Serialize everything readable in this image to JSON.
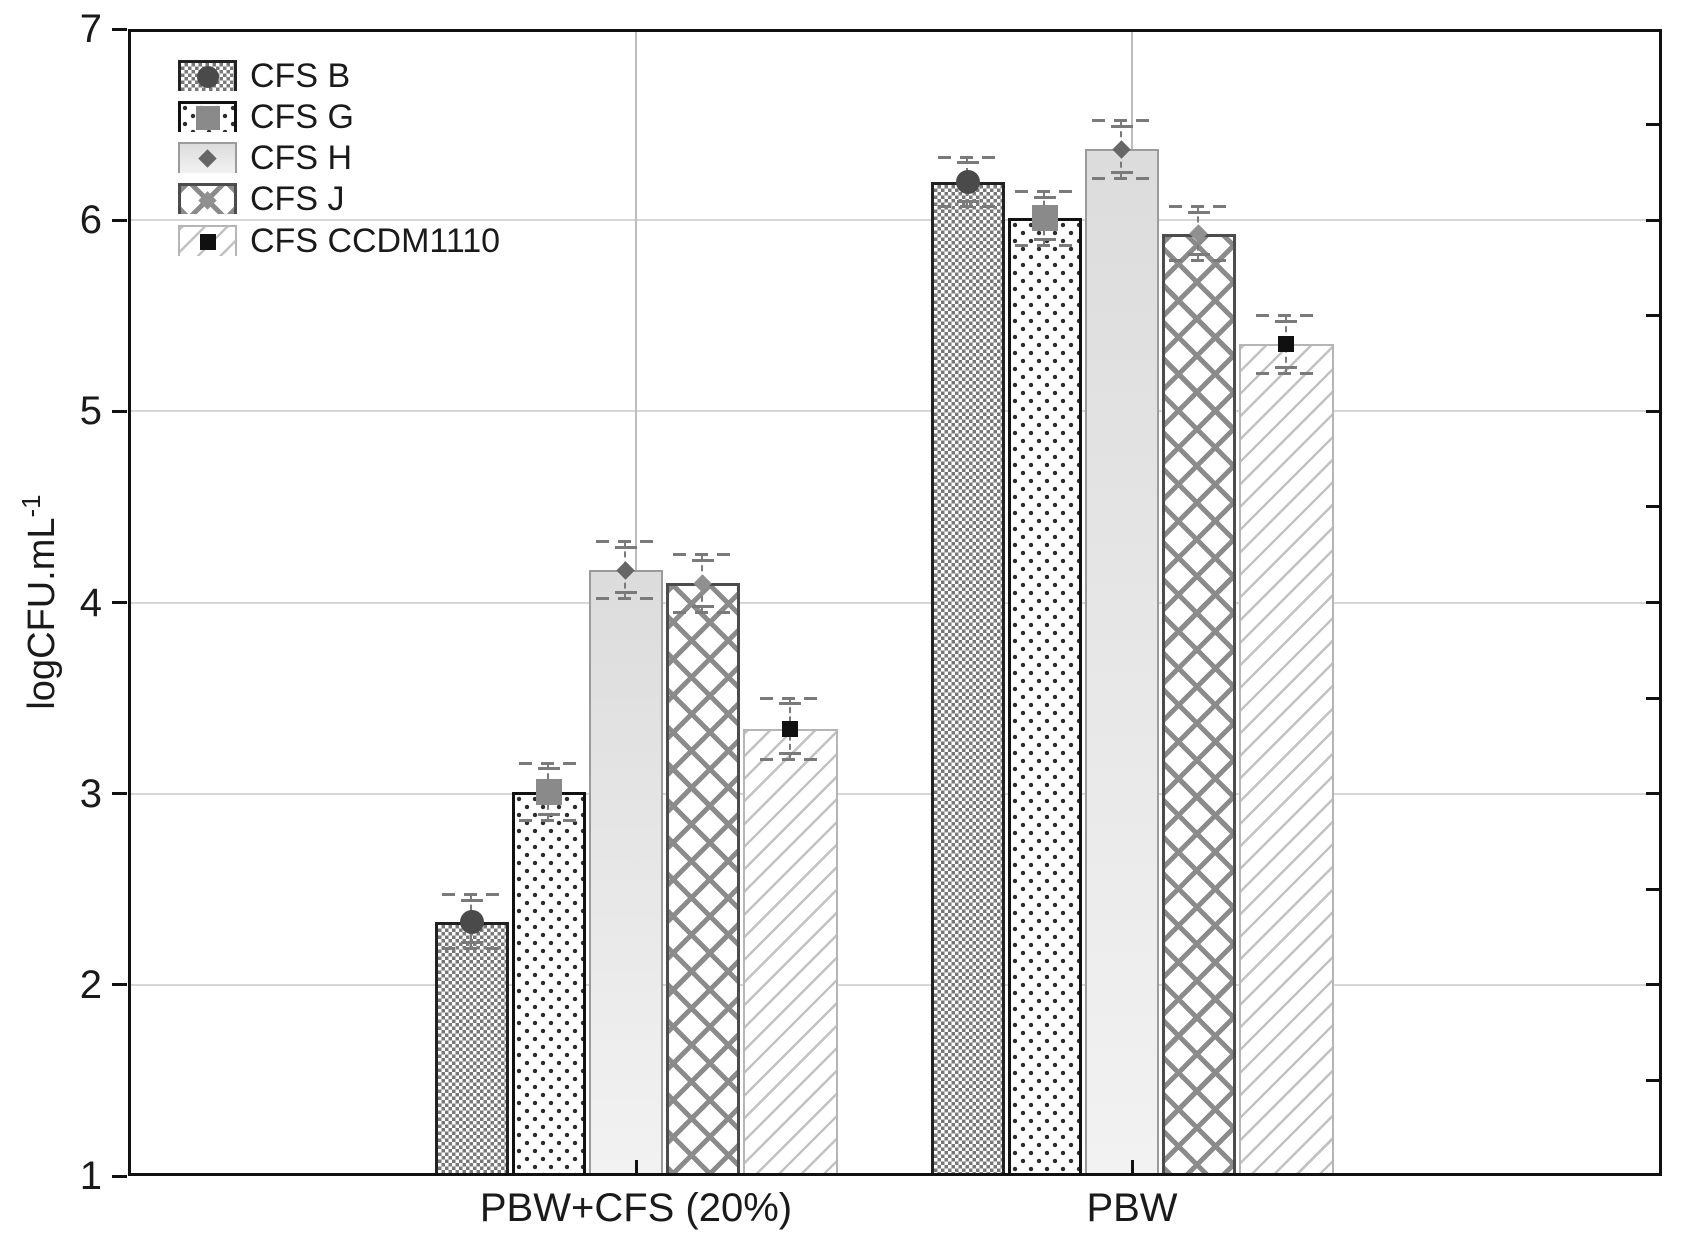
{
  "chart_data": {
    "type": "bar",
    "title": "",
    "ylabel_base": "logCFU.mL",
    "ylabel_exp": "-1",
    "xlabel": "",
    "ylim": [
      1,
      7
    ],
    "yticks": [
      "1",
      "2",
      "3",
      "4",
      "5",
      "6",
      "7"
    ],
    "right_axis_minor_tick_step": 0.5,
    "categories": [
      "PBW+CFS (20%)",
      "PBW"
    ],
    "grid": "horizontal gray lines at integer y values",
    "legend_position": "top-left",
    "series": [
      {
        "name": "CFS B",
        "pattern": "checkerboard",
        "marker": "dark-gray-circle",
        "values": [
          2.33,
          6.2
        ],
        "errors": [
          0.14,
          0.13
        ]
      },
      {
        "name": "CFS G",
        "pattern": "dotted",
        "marker": "gray-square",
        "values": [
          3.01,
          6.01
        ],
        "errors": [
          0.15,
          0.14
        ]
      },
      {
        "name": "CFS H",
        "pattern": "solid-light-gray",
        "marker": "small-dark-diamond",
        "values": [
          4.17,
          6.37
        ],
        "errors": [
          0.15,
          0.15
        ]
      },
      {
        "name": "CFS J",
        "pattern": "diamond-lattice",
        "marker": "small-gray-diamond",
        "values": [
          4.1,
          5.93
        ],
        "errors": [
          0.15,
          0.14
        ]
      },
      {
        "name": "CFS CCDM1110",
        "pattern": "diagonal-hatch",
        "marker": "small-black-square",
        "values": [
          3.34,
          5.35
        ],
        "errors": [
          0.16,
          0.15
        ]
      }
    ]
  },
  "colors": {
    "background": "#ffffff",
    "axis": "#111111",
    "grid_line": "#d6d6d6",
    "category_line": "#bdbdbd",
    "error_bar": "#7a7a7a",
    "text": "#1a1a1a",
    "light_bar_fill": "#e3e3e3"
  }
}
